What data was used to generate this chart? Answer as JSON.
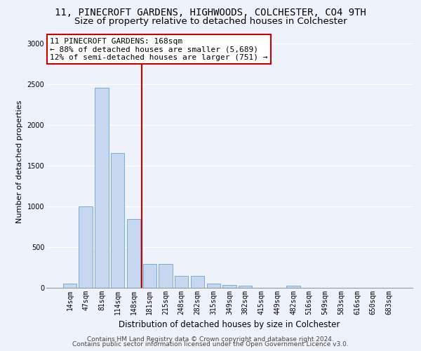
{
  "title1": "11, PINECROFT GARDENS, HIGHWOODS, COLCHESTER, CO4 9TH",
  "title2": "Size of property relative to detached houses in Colchester",
  "xlabel": "Distribution of detached houses by size in Colchester",
  "ylabel": "Number of detached properties",
  "categories": [
    "14sqm",
    "47sqm",
    "81sqm",
    "114sqm",
    "148sqm",
    "181sqm",
    "215sqm",
    "248sqm",
    "282sqm",
    "315sqm",
    "349sqm",
    "382sqm",
    "415sqm",
    "449sqm",
    "482sqm",
    "516sqm",
    "549sqm",
    "583sqm",
    "616sqm",
    "650sqm",
    "683sqm"
  ],
  "values": [
    55,
    1000,
    2450,
    1650,
    840,
    295,
    295,
    150,
    150,
    55,
    35,
    30,
    0,
    0,
    30,
    0,
    0,
    0,
    0,
    0,
    0
  ],
  "bar_color": "#c5d8f0",
  "bar_edge_color": "#7aadd4",
  "vline_x_index": 5,
  "vline_color": "#cc0000",
  "annotation_line1": "11 PINECROFT GARDENS: 168sqm",
  "annotation_line2": "← 88% of detached houses are smaller (5,689)",
  "annotation_line3": "12% of semi-detached houses are larger (751) →",
  "annotation_box_color": "#ffffff",
  "annotation_box_edge_color": "#cc0000",
  "ylim": [
    0,
    3100
  ],
  "yticks": [
    0,
    500,
    1000,
    1500,
    2000,
    2500,
    3000
  ],
  "footer1": "Contains HM Land Registry data © Crown copyright and database right 2024.",
  "footer2": "Contains public sector information licensed under the Open Government Licence v3.0.",
  "bg_color": "#eef2fa",
  "grid_color": "#ffffff",
  "title1_fontsize": 10,
  "title2_fontsize": 9.5,
  "xlabel_fontsize": 8.5,
  "ylabel_fontsize": 8,
  "tick_fontsize": 7,
  "annotation_fontsize": 8,
  "footer_fontsize": 6.5
}
